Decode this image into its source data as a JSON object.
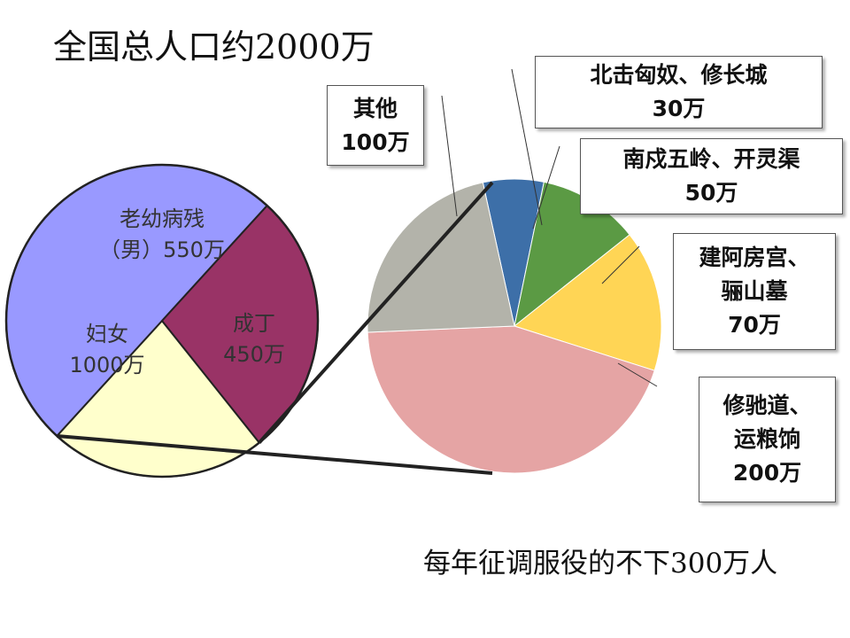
{
  "title": "全国总人口约2000万",
  "footnote": "每年征调服役的不下300万人",
  "chart_data": [
    {
      "type": "pie",
      "slices": [
        {
          "label_lines": [
            "妇女",
            "1000万"
          ],
          "value": 1000,
          "color": "#9999ff"
        },
        {
          "label_lines": [
            "老幼病残",
            "（男）550万"
          ],
          "value": 550,
          "color": "#993366"
        },
        {
          "label_lines": [
            "成丁",
            "450万"
          ],
          "value": 450,
          "color": "#ffffcc"
        }
      ]
    },
    {
      "type": "pie",
      "slices": [
        {
          "label_lines": [
            "北击匈奴、修长城",
            "30万"
          ],
          "value": 30,
          "color": "#3d6fa8"
        },
        {
          "label_lines": [
            "南戍五岭、开灵渠",
            "50万"
          ],
          "value": 50,
          "color": "#5b9a44"
        },
        {
          "label_lines": [
            "建阿房宫、",
            "骊山墓",
            "70万"
          ],
          "value": 70,
          "color": "#ffd555"
        },
        {
          "label_lines": [
            "修驰道、",
            "运粮饷",
            "200万"
          ],
          "value": 200,
          "color": "#e5a4a4"
        },
        {
          "label_lines": [
            "其他",
            "100万"
          ],
          "value": 100,
          "color": "#b3b3aa"
        }
      ]
    }
  ]
}
